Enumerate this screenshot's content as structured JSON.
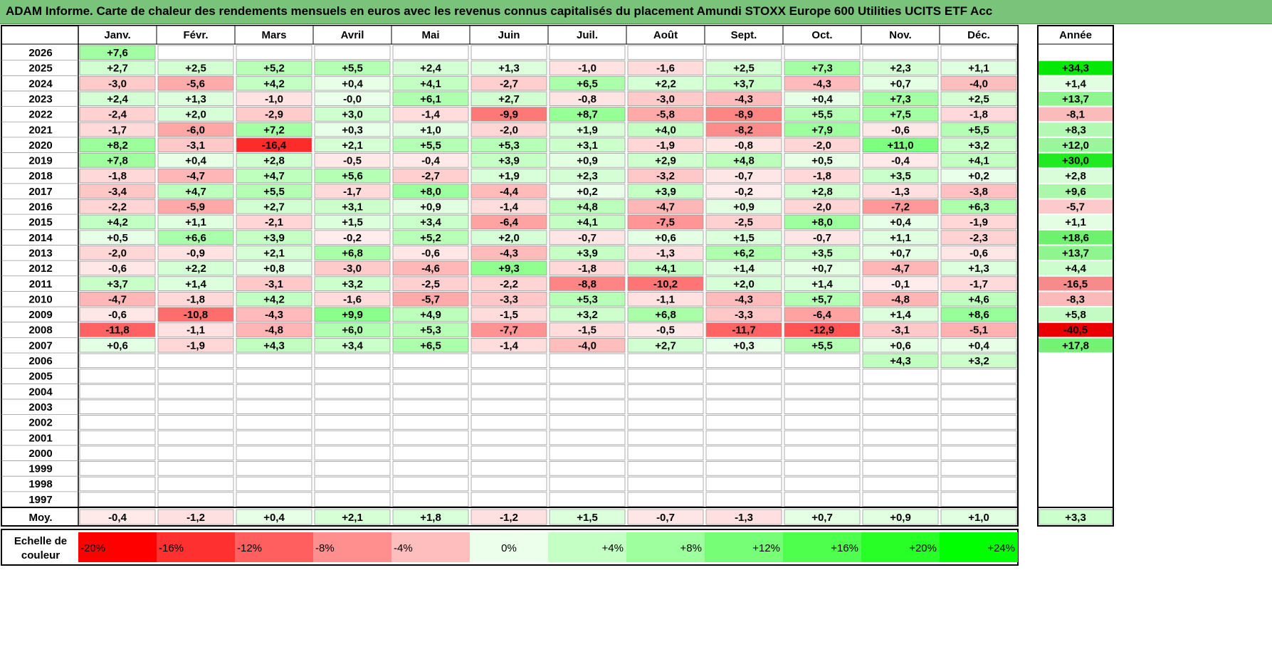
{
  "title": "ADAM Informe. Carte de chaleur des rendements mensuels en euros avec les revenus connus capitalisés du placement Amundi STOXX Europe 600 Utilities UCITS ETF Acc",
  "chart_data": {
    "type": "heatmap",
    "columns": [
      "Janv.",
      "Févr.",
      "Mars",
      "Avril",
      "Mai",
      "Juin",
      "Juil.",
      "Août",
      "Sept.",
      "Oct.",
      "Nov.",
      "Déc."
    ],
    "year_column_label": "Année",
    "years": [
      "2026",
      "2025",
      "2024",
      "2023",
      "2022",
      "2021",
      "2020",
      "2019",
      "2018",
      "2017",
      "2016",
      "2015",
      "2014",
      "2013",
      "2012",
      "2011",
      "2010",
      "2009",
      "2008",
      "2007",
      "2006",
      "2005",
      "2004",
      "2003",
      "2002",
      "2001",
      "2000",
      "1999",
      "1998",
      "1997"
    ],
    "values": [
      [
        "+7,6",
        "",
        "",
        "",
        "",
        "",
        "",
        "",
        "",
        "",
        "",
        ""
      ],
      [
        "+2,7",
        "+2,5",
        "+5,2",
        "+5,5",
        "+2,4",
        "+1,3",
        "-1,0",
        "-1,6",
        "+2,5",
        "+7,3",
        "+2,3",
        "+1,1"
      ],
      [
        "-3,0",
        "-5,6",
        "+4,2",
        "+0,4",
        "+4,1",
        "-2,7",
        "+6,5",
        "+2,2",
        "+3,7",
        "-4,3",
        "+0,7",
        "-4,0"
      ],
      [
        "+2,4",
        "+1,3",
        "-1,0",
        "-0,0",
        "+6,1",
        "+2,7",
        "-0,8",
        "-3,0",
        "-4,3",
        "+0,4",
        "+7,3",
        "+2,5"
      ],
      [
        "-2,4",
        "+2,0",
        "-2,9",
        "+3,0",
        "-1,4",
        "-9,9",
        "+8,7",
        "-5,8",
        "-8,9",
        "+5,5",
        "+7,5",
        "-1,8"
      ],
      [
        "-1,7",
        "-6,0",
        "+7,2",
        "+0,3",
        "+1,0",
        "-2,0",
        "+1,9",
        "+4,0",
        "-8,2",
        "+7,9",
        "-0,6",
        "+5,5"
      ],
      [
        "+8,2",
        "-3,1",
        "-16,4",
        "+2,1",
        "+5,5",
        "+5,3",
        "+3,1",
        "-1,9",
        "-0,8",
        "-2,0",
        "+11,0",
        "+3,2"
      ],
      [
        "+7,8",
        "+0,4",
        "+2,8",
        "-0,5",
        "-0,4",
        "+3,9",
        "+0,9",
        "+2,9",
        "+4,8",
        "+0,5",
        "-0,4",
        "+4,1"
      ],
      [
        "-1,8",
        "-4,7",
        "+4,7",
        "+5,6",
        "-2,7",
        "+1,9",
        "+2,3",
        "-3,2",
        "-0,7",
        "-1,8",
        "+3,5",
        "+0,2"
      ],
      [
        "-3,4",
        "+4,7",
        "+5,5",
        "-1,7",
        "+8,0",
        "-4,4",
        "+0,2",
        "+3,9",
        "-0,2",
        "+2,8",
        "-1,3",
        "-3,8"
      ],
      [
        "-2,2",
        "-5,9",
        "+2,7",
        "+3,1",
        "+0,9",
        "-1,4",
        "+4,8",
        "-4,7",
        "+0,9",
        "-2,0",
        "-7,2",
        "+6,3"
      ],
      [
        "+4,2",
        "+1,1",
        "-2,1",
        "+1,5",
        "+3,4",
        "-6,4",
        "+4,1",
        "-7,5",
        "-2,5",
        "+8,0",
        "+0,4",
        "-1,9"
      ],
      [
        "+0,5",
        "+6,6",
        "+3,9",
        "-0,2",
        "+5,2",
        "+2,0",
        "-0,7",
        "+0,6",
        "+1,5",
        "-0,7",
        "+1,1",
        "-2,3"
      ],
      [
        "-2,0",
        "-0,9",
        "+2,1",
        "+6,8",
        "-0,6",
        "-4,3",
        "+3,9",
        "-1,3",
        "+6,2",
        "+3,5",
        "+0,7",
        "-0,6"
      ],
      [
        "-0,6",
        "+2,2",
        "+0,8",
        "-3,0",
        "-4,6",
        "+9,3",
        "-1,8",
        "+4,1",
        "+1,4",
        "+0,7",
        "-4,7",
        "+1,3"
      ],
      [
        "+3,7",
        "+1,4",
        "-3,1",
        "+3,2",
        "-2,5",
        "-2,2",
        "-8,8",
        "-10,2",
        "+2,0",
        "+1,4",
        "-0,1",
        "-1,7"
      ],
      [
        "-4,7",
        "-1,8",
        "+4,2",
        "-1,6",
        "-5,7",
        "-3,3",
        "+5,3",
        "-1,1",
        "-4,3",
        "+5,7",
        "-4,8",
        "+4,6"
      ],
      [
        "-0,6",
        "-10,8",
        "-4,3",
        "+9,9",
        "+4,9",
        "-1,5",
        "+3,2",
        "+6,8",
        "-3,3",
        "-6,4",
        "+1,4",
        "+8,6"
      ],
      [
        "-11,8",
        "-1,1",
        "-4,8",
        "+6,0",
        "+5,3",
        "-7,7",
        "-1,5",
        "-0,5",
        "-11,7",
        "-12,9",
        "-3,1",
        "-5,1"
      ],
      [
        "+0,6",
        "-1,9",
        "+4,3",
        "+3,4",
        "+6,5",
        "-1,4",
        "-4,0",
        "+2,7",
        "+0,3",
        "+5,5",
        "+0,6",
        "+0,4"
      ],
      [
        "",
        "",
        "",
        "",
        "",
        "",
        "",
        "",
        "",
        "",
        "+4,3",
        "+3,2"
      ],
      [
        "",
        "",
        "",
        "",
        "",
        "",
        "",
        "",
        "",
        "",
        "",
        ""
      ],
      [
        "",
        "",
        "",
        "",
        "",
        "",
        "",
        "",
        "",
        "",
        "",
        ""
      ],
      [
        "",
        "",
        "",
        "",
        "",
        "",
        "",
        "",
        "",
        "",
        "",
        ""
      ],
      [
        "",
        "",
        "",
        "",
        "",
        "",
        "",
        "",
        "",
        "",
        "",
        ""
      ],
      [
        "",
        "",
        "",
        "",
        "",
        "",
        "",
        "",
        "",
        "",
        "",
        ""
      ],
      [
        "",
        "",
        "",
        "",
        "",
        "",
        "",
        "",
        "",
        "",
        "",
        ""
      ],
      [
        "",
        "",
        "",
        "",
        "",
        "",
        "",
        "",
        "",
        "",
        "",
        ""
      ],
      [
        "",
        "",
        "",
        "",
        "",
        "",
        "",
        "",
        "",
        "",
        "",
        ""
      ],
      [
        "",
        "",
        "",
        "",
        "",
        "",
        "",
        "",
        "",
        "",
        "",
        ""
      ]
    ],
    "annual": [
      "",
      "+34,3",
      "+1,4",
      "+13,7",
      "-8,1",
      "+8,3",
      "+12,0",
      "+30,0",
      "+2,8",
      "+9,6",
      "-5,7",
      "+1,1",
      "+18,6",
      "+13,7",
      "+4,4",
      "-16,5",
      "-8,3",
      "+5,8",
      "-40,5",
      "+17,8",
      "",
      "",
      "",
      "",
      "",
      "",
      "",
      "",
      "",
      ""
    ],
    "average_label": "Moy.",
    "averages": [
      "-0,4",
      "-1,2",
      "+0,4",
      "+2,1",
      "+1,8",
      "-1,2",
      "+1,5",
      "-0,7",
      "-1,3",
      "+0,7",
      "+0,9",
      "+1,0"
    ],
    "average_annual": "+3,3",
    "scale_label": [
      "Echelle de",
      "couleur"
    ],
    "scale": [
      {
        "label": "-20%",
        "value": -20
      },
      {
        "label": "-16%",
        "value": -16
      },
      {
        "label": "-12%",
        "value": -12
      },
      {
        "label": "-8%",
        "value": -8
      },
      {
        "label": "-4%",
        "value": -4
      },
      {
        "label": "0%",
        "value": 0
      },
      {
        "label": "+4%",
        "value": 4
      },
      {
        "label": "+8%",
        "value": 8
      },
      {
        "label": "+12%",
        "value": 12
      },
      {
        "label": "+16%",
        "value": 16
      },
      {
        "label": "+20%",
        "value": 20
      },
      {
        "label": "+24%",
        "value": 24
      }
    ],
    "colors": {
      "negative_max": "#ff0000",
      "positive_max": "#00ff00",
      "neutral": "#ffffff",
      "title_bg": "#7ac37a",
      "grid": "#999999"
    }
  }
}
